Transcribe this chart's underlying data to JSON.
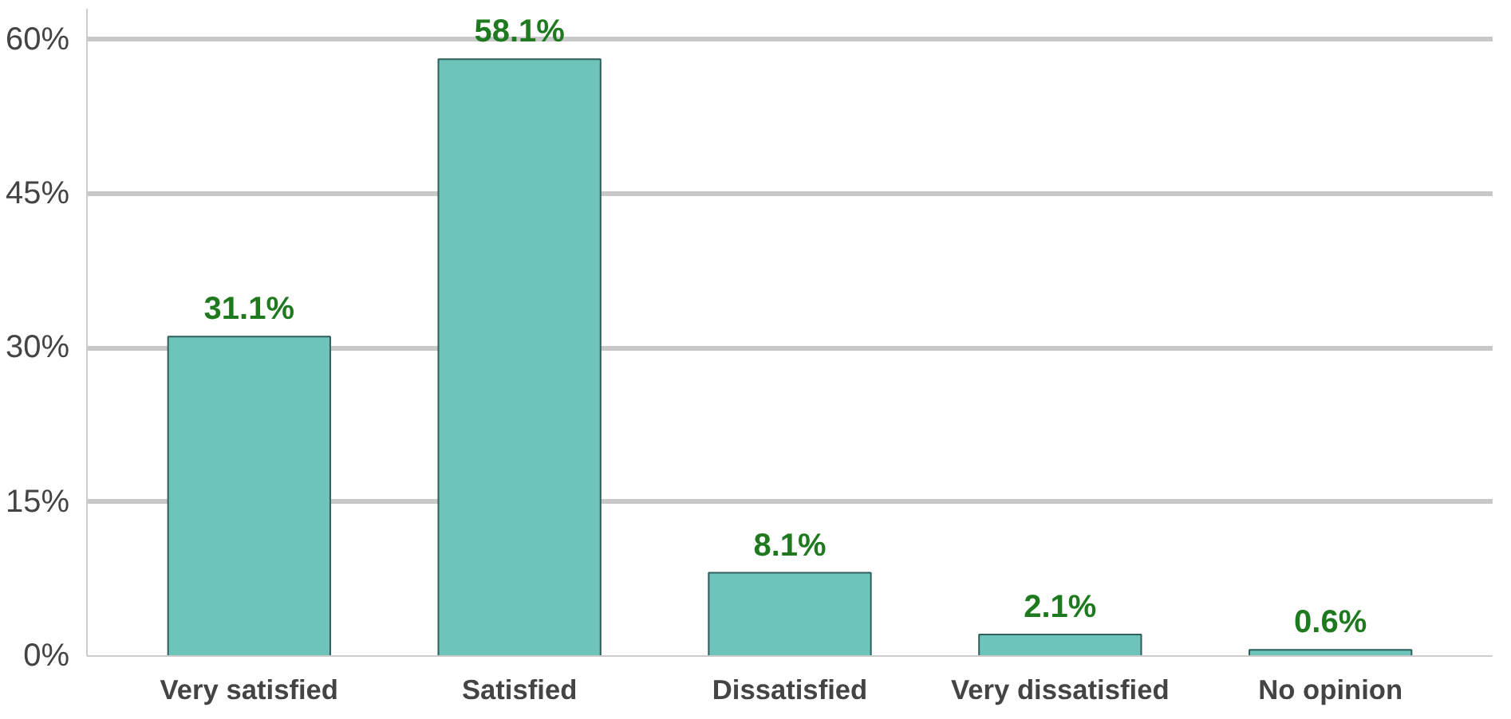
{
  "chart_data": {
    "type": "bar",
    "categories": [
      "Very satisfied",
      "Satisfied",
      "Dissatisfied",
      "Very dissatisfied",
      "No opinion"
    ],
    "values": [
      31.1,
      58.1,
      8.1,
      2.1,
      0.6
    ],
    "value_labels": [
      "31.1%",
      "58.1%",
      "8.1%",
      "2.1%",
      "0.6%"
    ],
    "color": "#6ec3bb",
    "ylim": [
      0,
      63
    ],
    "yticks": [
      {
        "value": 0,
        "label": "0%"
      },
      {
        "value": 15,
        "label": "15%"
      },
      {
        "value": 30,
        "label": "30%"
      },
      {
        "value": 45,
        "label": "45%"
      },
      {
        "value": 60,
        "label": "60%"
      }
    ],
    "grid": "y"
  }
}
